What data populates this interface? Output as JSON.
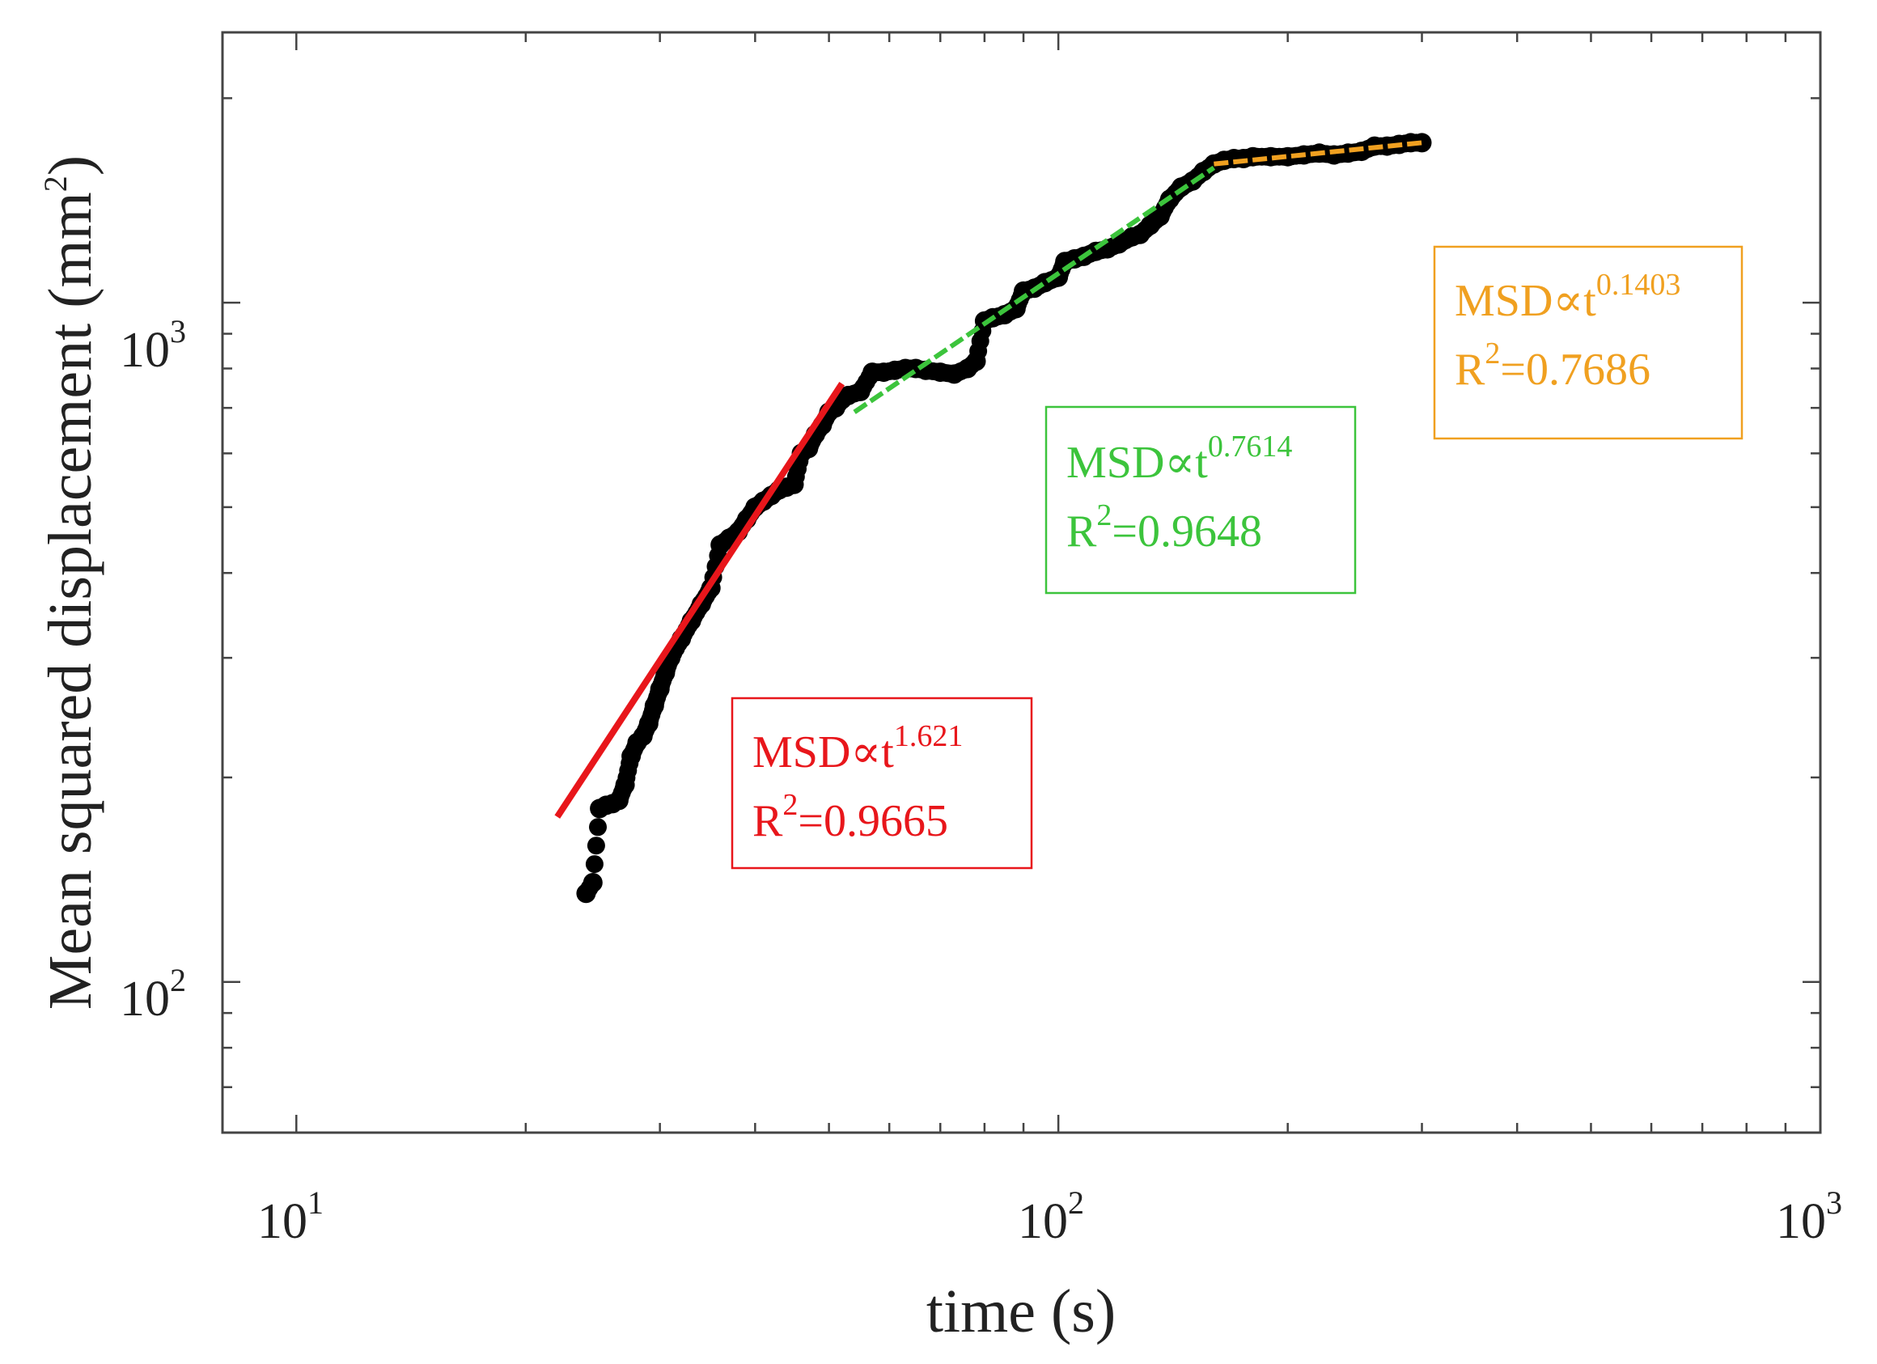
{
  "chart_data": {
    "type": "scatter",
    "xscale": "log",
    "yscale": "log",
    "xlim": [
      8,
      1000
    ],
    "ylim": [
      60,
      2500
    ],
    "xlabel": "time (s)",
    "ylabel": "Mean squared displacement (mm",
    "ylabel_sup": "2",
    "ylabel_end": ")",
    "grid": false,
    "x_ticks": [
      {
        "base": "10",
        "exp": "1"
      },
      {
        "base": "10",
        "exp": "2"
      },
      {
        "base": "10",
        "exp": "3"
      }
    ],
    "y_ticks": [
      {
        "base": "10",
        "exp": "2"
      },
      {
        "base": "10",
        "exp": "3"
      }
    ],
    "x_tick_values": [
      10,
      100,
      1000
    ],
    "y_tick_values": [
      100,
      1000
    ],
    "series": [
      {
        "name": "MSD data",
        "color": "#000000",
        "x": [
          24,
          24.5,
          25,
          25.5,
          26,
          26.5,
          27,
          27.5,
          28,
          28.5,
          29,
          29.5,
          30,
          30.5,
          31,
          32,
          33,
          34,
          35,
          36,
          37,
          38,
          39,
          40,
          41,
          42,
          43,
          44,
          45,
          46,
          47,
          48,
          49,
          50,
          51,
          52,
          53,
          55,
          57,
          59,
          61,
          63,
          65,
          67,
          70,
          73,
          76,
          78,
          80,
          82,
          85,
          88,
          90,
          93,
          96,
          100,
          102,
          105,
          108,
          112,
          116,
          120,
          125,
          128,
          132,
          136,
          140,
          145,
          150,
          155,
          160,
          165,
          170,
          175,
          180,
          190,
          200,
          210,
          220,
          230,
          240,
          250,
          260,
          270,
          280,
          290,
          300
        ],
        "y": [
          135,
          140,
          180,
          182,
          183,
          185,
          195,
          215,
          225,
          230,
          240,
          255,
          270,
          285,
          300,
          320,
          340,
          360,
          380,
          440,
          450,
          460,
          480,
          500,
          510,
          520,
          530,
          535,
          540,
          600,
          610,
          640,
          660,
          690,
          700,
          720,
          730,
          740,
          790,
          790,
          795,
          800,
          800,
          795,
          790,
          785,
          800,
          820,
          940,
          950,
          960,
          980,
          1040,
          1050,
          1070,
          1090,
          1150,
          1160,
          1170,
          1190,
          1200,
          1220,
          1250,
          1260,
          1300,
          1340,
          1420,
          1480,
          1510,
          1560,
          1600,
          1620,
          1630,
          1630,
          1640,
          1640,
          1640,
          1650,
          1660,
          1650,
          1660,
          1670,
          1700,
          1700,
          1710,
          1720,
          1720
        ]
      }
    ],
    "fits": [
      {
        "name": "fit-1",
        "color": "#e8161b",
        "exponent": "1.621",
        "r2": "0.9665",
        "x": [
          22,
          52
        ],
        "y": [
          175,
          760
        ]
      },
      {
        "name": "fit-2",
        "color": "#3cc43c",
        "exponent": "0.7614",
        "r2": "0.9648",
        "x": [
          54,
          160
        ],
        "y": [
          690,
          1580
        ]
      },
      {
        "name": "fit-3",
        "color": "#f0a020",
        "exponent": "0.1403",
        "r2": "0.7686",
        "x": [
          160,
          300
        ],
        "y": [
          1600,
          1720
        ]
      }
    ],
    "annotations": [
      {
        "name": "annotation-red",
        "color": "#e8161b",
        "line1": "MSD∝t",
        "sup1": "1.621",
        "line2a": "R",
        "sup2": "2",
        "line2b": "=0.9665"
      },
      {
        "name": "annotation-green",
        "color": "#3cc43c",
        "line1": "MSD∝t",
        "sup1": "0.7614",
        "line2a": "R",
        "sup2": "2",
        "line2b": "=0.9648"
      },
      {
        "name": "annotation-orange",
        "color": "#f0a020",
        "line1": "MSD∝t",
        "sup1": "0.1403",
        "line2a": "R",
        "sup2": "2",
        "line2b": "=0.7686"
      }
    ]
  }
}
